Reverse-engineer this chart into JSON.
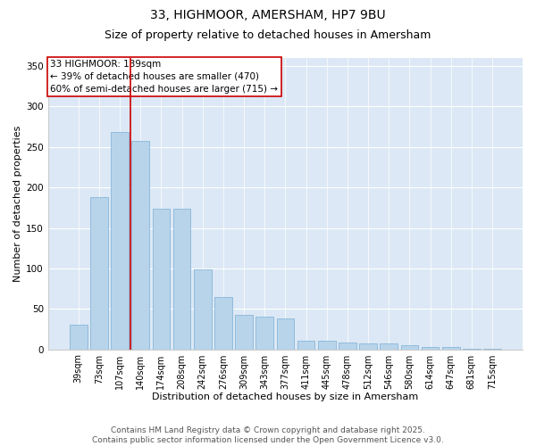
{
  "title1": "33, HIGHMOOR, AMERSHAM, HP7 9BU",
  "title2": "Size of property relative to detached houses in Amersham",
  "xlabel": "Distribution of detached houses by size in Amersham",
  "ylabel": "Number of detached properties",
  "categories": [
    "39sqm",
    "73sqm",
    "107sqm",
    "140sqm",
    "174sqm",
    "208sqm",
    "242sqm",
    "276sqm",
    "309sqm",
    "343sqm",
    "377sqm",
    "411sqm",
    "445sqm",
    "478sqm",
    "512sqm",
    "546sqm",
    "580sqm",
    "614sqm",
    "647sqm",
    "681sqm",
    "715sqm"
  ],
  "values": [
    30,
    188,
    268,
    257,
    174,
    174,
    99,
    65,
    42,
    40,
    38,
    11,
    11,
    8,
    7,
    7,
    5,
    3,
    3,
    1,
    1
  ],
  "bar_color": "#b8d4ea",
  "bar_edge_color": "#7aafd4",
  "vline_color": "#cc0000",
  "annotation_text": "33 HIGHMOOR: 139sqm\n← 39% of detached houses are smaller (470)\n60% of semi-detached houses are larger (715) →",
  "ylim": [
    0,
    360
  ],
  "yticks": [
    0,
    50,
    100,
    150,
    200,
    250,
    300,
    350
  ],
  "plot_bg_color": "#dce8f5",
  "footer_text": "Contains HM Land Registry data © Crown copyright and database right 2025.\nContains public sector information licensed under the Open Government Licence v3.0.",
  "title1_fontsize": 10,
  "title2_fontsize": 9,
  "axis_label_fontsize": 8,
  "tick_fontsize": 7,
  "annotation_fontsize": 7.5,
  "footer_fontsize": 6.5,
  "vline_index": 2.5
}
